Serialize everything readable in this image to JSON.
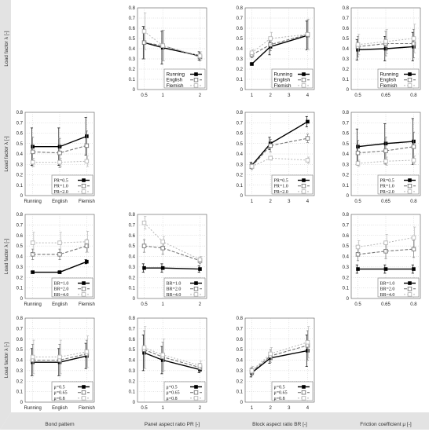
{
  "row_labels": [
    "Load factor λ [-]",
    "Load factor λ [-]",
    "Load factor λ [-]",
    "Load factor λ [-]"
  ],
  "col_labels": [
    "Bond pattern",
    "Panel aspect ratio PR [-]",
    "Block aspect ratio BR [-]",
    "Friction coefficient μ [-]"
  ],
  "y_ticks": [
    "0",
    "0.1",
    "0.2",
    "0.3",
    "0.4",
    "0.5",
    "0.6",
    "0.7",
    "0.8"
  ],
  "colors": {
    "black": "#000000",
    "darkgray": "#777777",
    "lightgray": "#b8b8b8",
    "grid": "#bbbbbb",
    "wall": "#e3e3e3"
  },
  "chart_data": [
    {
      "type": "line",
      "row": 0,
      "col": 1,
      "ylim": [
        0,
        0.8
      ],
      "x_ticks": [
        "0.5",
        "1",
        "2"
      ],
      "x": [
        0.5,
        1,
        2
      ],
      "legend_position": "bottom-right",
      "series": [
        {
          "name": "Running",
          "values": [
            0.46,
            0.41,
            0.33
          ],
          "errors": [
            0.16,
            0.16,
            0.04
          ]
        },
        {
          "name": "English",
          "values": [
            0.46,
            0.43,
            0.32
          ],
          "errors": [
            0.16,
            0.15,
            0.04
          ]
        },
        {
          "name": "Flemish",
          "values": [
            0.57,
            0.43,
            0.33
          ],
          "errors": [
            0.18,
            0.15,
            0.04
          ]
        }
      ]
    },
    {
      "type": "line",
      "row": 0,
      "col": 2,
      "ylim": [
        0,
        0.8
      ],
      "x_ticks": [
        "1",
        "2",
        "3",
        "4"
      ],
      "x": [
        1,
        2,
        4
      ],
      "legend_position": "bottom-right",
      "series": [
        {
          "name": "Running",
          "values": [
            0.25,
            0.42,
            0.53
          ],
          "errors": [
            0.01,
            0.08,
            0.14
          ]
        },
        {
          "name": "English",
          "values": [
            0.34,
            0.44,
            0.54
          ],
          "errors": [
            0.03,
            0.06,
            0.14
          ]
        },
        {
          "name": "Flemish",
          "values": [
            0.36,
            0.5,
            0.54
          ],
          "errors": [
            0.03,
            0.06,
            0.15
          ]
        }
      ]
    },
    {
      "type": "line",
      "row": 0,
      "col": 3,
      "ylim": [
        0,
        0.8
      ],
      "x_ticks": [
        "0.5",
        "0.65",
        "0.8"
      ],
      "x": [
        0.5,
        0.65,
        0.8
      ],
      "legend_position": "bottom-right",
      "series": [
        {
          "name": "Running",
          "values": [
            0.39,
            0.4,
            0.42
          ],
          "errors": [
            0.1,
            0.12,
            0.14
          ]
        },
        {
          "name": "English",
          "values": [
            0.42,
            0.45,
            0.45
          ],
          "errors": [
            0.1,
            0.12,
            0.14
          ]
        },
        {
          "name": "Flemish",
          "values": [
            0.44,
            0.47,
            0.5
          ],
          "errors": [
            0.1,
            0.12,
            0.14
          ]
        }
      ]
    },
    {
      "type": "line",
      "row": 1,
      "col": 0,
      "ylim": [
        0,
        0.8
      ],
      "x_ticks": [
        "Running",
        "English",
        "Flemish"
      ],
      "x": [
        0,
        1,
        2
      ],
      "legend_position": "bottom-right",
      "series": [
        {
          "name": "PR=0.5",
          "values": [
            0.47,
            0.47,
            0.57
          ],
          "errors": [
            0.18,
            0.18,
            0.18
          ]
        },
        {
          "name": "PR=1.0",
          "values": [
            0.42,
            0.41,
            0.48
          ],
          "errors": [
            0.14,
            0.14,
            0.14
          ]
        },
        {
          "name": "PR=2.0",
          "values": [
            0.32,
            0.32,
            0.33
          ],
          "errors": [
            0.04,
            0.04,
            0.05
          ]
        }
      ]
    },
    {
      "type": "line",
      "row": 1,
      "col": 2,
      "ylim": [
        0,
        0.8
      ],
      "x_ticks": [
        "1",
        "2",
        "3",
        "4"
      ],
      "x": [
        1,
        2,
        4
      ],
      "legend_position": "bottom-right",
      "series": [
        {
          "name": "PR=0.5",
          "values": [
            0.29,
            0.5,
            0.71
          ],
          "errors": [
            0.03,
            0.06,
            0.05
          ]
        },
        {
          "name": "PR=1.0",
          "values": [
            0.28,
            0.48,
            0.55
          ],
          "errors": [
            0.03,
            0.06,
            0.04
          ]
        },
        {
          "name": "PR=2.0",
          "values": [
            0.28,
            0.36,
            0.34
          ],
          "errors": [
            0.02,
            0.02,
            0.03
          ]
        }
      ]
    },
    {
      "type": "line",
      "row": 1,
      "col": 3,
      "ylim": [
        0,
        0.8
      ],
      "x_ticks": [
        "0.5",
        "0.65",
        "0.8"
      ],
      "x": [
        0.5,
        0.65,
        0.8
      ],
      "legend_position": "bottom-right",
      "series": [
        {
          "name": "PR=0.5",
          "values": [
            0.47,
            0.5,
            0.52
          ],
          "errors": [
            0.17,
            0.19,
            0.22
          ]
        },
        {
          "name": "PR=1.0",
          "values": [
            0.41,
            0.43,
            0.47
          ],
          "errors": [
            0.12,
            0.13,
            0.14
          ]
        },
        {
          "name": "PR=2.0",
          "values": [
            0.31,
            0.33,
            0.34
          ],
          "errors": [
            0.03,
            0.04,
            0.04
          ]
        }
      ]
    },
    {
      "type": "line",
      "row": 2,
      "col": 0,
      "ylim": [
        0,
        0.8
      ],
      "x_ticks": [
        "Running",
        "English",
        "Flemish"
      ],
      "x": [
        0,
        1,
        2
      ],
      "legend_position": "bottom-right",
      "series": [
        {
          "name": "BR=1.0",
          "values": [
            0.25,
            0.25,
            0.35
          ],
          "errors": [
            0.01,
            0.01,
            0.02
          ]
        },
        {
          "name": "BR=2.0",
          "values": [
            0.42,
            0.42,
            0.5
          ],
          "errors": [
            0.05,
            0.05,
            0.06
          ]
        },
        {
          "name": "BR=4.0",
          "values": [
            0.53,
            0.53,
            0.54
          ],
          "errors": [
            0.1,
            0.1,
            0.1
          ]
        }
      ]
    },
    {
      "type": "line",
      "row": 2,
      "col": 1,
      "ylim": [
        0,
        0.8
      ],
      "x_ticks": [
        "0.5",
        "1",
        "2"
      ],
      "x": [
        0.5,
        1,
        2
      ],
      "legend_position": "bottom-right",
      "series": [
        {
          "name": "BR=1.0",
          "values": [
            0.29,
            0.29,
            0.28
          ],
          "errors": [
            0.04,
            0.04,
            0.03
          ]
        },
        {
          "name": "BR=2.0",
          "values": [
            0.5,
            0.48,
            0.36
          ],
          "errors": [
            0.06,
            0.06,
            0.03
          ]
        },
        {
          "name": "BR=4.0",
          "values": [
            0.72,
            0.54,
            0.37
          ],
          "errors": [
            0.06,
            0.05,
            0.03
          ]
        }
      ]
    },
    {
      "type": "line",
      "row": 2,
      "col": 3,
      "ylim": [
        0,
        0.8
      ],
      "x_ticks": [
        "0.5",
        "0.65",
        "0.8"
      ],
      "x": [
        0.5,
        0.65,
        0.8
      ],
      "legend_position": "bottom-right",
      "series": [
        {
          "name": "BR=1.0",
          "values": [
            0.28,
            0.28,
            0.28
          ],
          "errors": [
            0.04,
            0.04,
            0.04
          ]
        },
        {
          "name": "BR=2.0",
          "values": [
            0.42,
            0.45,
            0.47
          ],
          "errors": [
            0.06,
            0.07,
            0.08
          ]
        },
        {
          "name": "BR=4.0",
          "values": [
            0.49,
            0.53,
            0.58
          ],
          "errors": [
            0.06,
            0.08,
            0.1
          ]
        }
      ]
    },
    {
      "type": "line",
      "row": 3,
      "col": 0,
      "ylim": [
        0,
        0.8
      ],
      "x_ticks": [
        "Running",
        "English",
        "Flemish"
      ],
      "x": [
        0,
        1,
        2
      ],
      "legend_position": "bottom-right",
      "series": [
        {
          "name": "μ=0.5",
          "values": [
            0.38,
            0.38,
            0.44
          ],
          "errors": [
            0.13,
            0.13,
            0.12
          ]
        },
        {
          "name": "μ=0.65",
          "values": [
            0.4,
            0.4,
            0.46
          ],
          "errors": [
            0.15,
            0.15,
            0.13
          ]
        },
        {
          "name": "μ=0.8",
          "values": [
            0.43,
            0.43,
            0.48
          ],
          "errors": [
            0.16,
            0.16,
            0.15
          ]
        }
      ]
    },
    {
      "type": "line",
      "row": 3,
      "col": 1,
      "ylim": [
        0,
        0.8
      ],
      "x_ticks": [
        "0.5",
        "1",
        "2"
      ],
      "x": [
        0.5,
        1,
        2
      ],
      "legend_position": "bottom-right",
      "series": [
        {
          "name": "μ=0.5",
          "values": [
            0.47,
            0.4,
            0.31
          ],
          "errors": [
            0.17,
            0.13,
            0.03
          ]
        },
        {
          "name": "μ=0.65",
          "values": [
            0.5,
            0.43,
            0.33
          ],
          "errors": [
            0.18,
            0.14,
            0.04
          ]
        },
        {
          "name": "μ=0.8",
          "values": [
            0.52,
            0.45,
            0.35
          ],
          "errors": [
            0.2,
            0.15,
            0.04
          ]
        }
      ]
    },
    {
      "type": "line",
      "row": 3,
      "col": 2,
      "ylim": [
        0,
        0.8
      ],
      "x_ticks": [
        "1",
        "2",
        "3",
        "4"
      ],
      "x": [
        1,
        2,
        4
      ],
      "legend_position": "bottom-right",
      "series": [
        {
          "name": "μ=0.5",
          "values": [
            0.28,
            0.42,
            0.49
          ],
          "errors": [
            0.04,
            0.05,
            0.15
          ]
        },
        {
          "name": "μ=0.65",
          "values": [
            0.29,
            0.44,
            0.54
          ],
          "errors": [
            0.04,
            0.06,
            0.14
          ]
        },
        {
          "name": "μ=0.8",
          "values": [
            0.3,
            0.46,
            0.57
          ],
          "errors": [
            0.04,
            0.06,
            0.15
          ]
        }
      ]
    }
  ]
}
